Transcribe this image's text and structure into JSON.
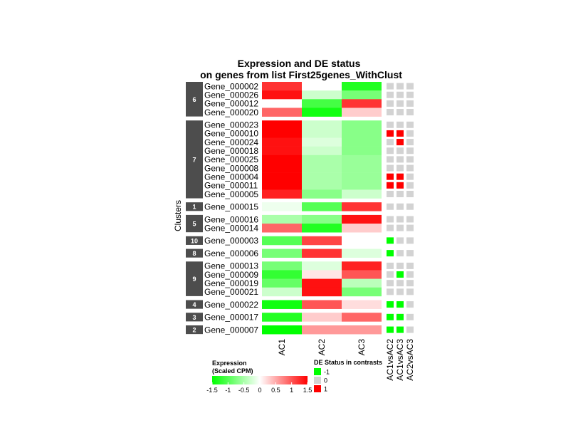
{
  "chart_data": {
    "type": "heatmap",
    "title": "Expression and DE status",
    "subtitle": "on genes from list First25genes_WithClust",
    "y_axis_label": "Clusters",
    "expression_columns": [
      "AC1",
      "AC2",
      "AC3"
    ],
    "contrast_columns": [
      "AC1vsAC2",
      "AC1vsAC3",
      "AC2vsAC3"
    ],
    "expression_range": [
      -1.5,
      1.5
    ],
    "expression_colors": {
      "low": "#00ff00",
      "mid": "#ffffff",
      "high": "#ff0000"
    },
    "de_colors": {
      "-1": "#00ff00",
      "0": "#d3d3d3",
      "1": "#ff0000"
    },
    "clusters": [
      {
        "label": "6",
        "genes": [
          {
            "name": "Gene_000002",
            "expr": [
              1.2,
              0.0,
              -1.3
            ],
            "de": [
              0,
              0,
              0
            ]
          },
          {
            "name": "Gene_000026",
            "expr": [
              1.4,
              -0.3,
              -0.8
            ],
            "de": [
              0,
              0,
              0
            ]
          },
          {
            "name": "Gene_000012",
            "expr": [
              0.0,
              -1.1,
              1.2
            ],
            "de": [
              0,
              0,
              0
            ]
          },
          {
            "name": "Gene_000020",
            "expr": [
              0.9,
              -1.4,
              0.3
            ],
            "de": [
              0,
              0,
              0
            ]
          }
        ]
      },
      {
        "label": "7",
        "genes": [
          {
            "name": "Gene_000023",
            "expr": [
              1.5,
              -0.3,
              -0.7
            ],
            "de": [
              0,
              0,
              0
            ]
          },
          {
            "name": "Gene_000010",
            "expr": [
              1.5,
              -0.3,
              -0.7
            ],
            "de": [
              1,
              1,
              0
            ]
          },
          {
            "name": "Gene_000024",
            "expr": [
              1.4,
              -0.2,
              -0.7
            ],
            "de": [
              0,
              1,
              0
            ]
          },
          {
            "name": "Gene_000018",
            "expr": [
              1.4,
              -0.3,
              -0.7
            ],
            "de": [
              0,
              0,
              0
            ]
          },
          {
            "name": "Gene_000025",
            "expr": [
              1.5,
              -0.5,
              -0.6
            ],
            "de": [
              0,
              0,
              0
            ]
          },
          {
            "name": "Gene_000008",
            "expr": [
              1.5,
              -0.5,
              -0.6
            ],
            "de": [
              0,
              0,
              0
            ]
          },
          {
            "name": "Gene_000004",
            "expr": [
              1.5,
              -0.5,
              -0.6
            ],
            "de": [
              1,
              1,
              0
            ]
          },
          {
            "name": "Gene_000011",
            "expr": [
              1.5,
              -0.5,
              -0.6
            ],
            "de": [
              1,
              1,
              0
            ]
          },
          {
            "name": "Gene_000005",
            "expr": [
              1.3,
              -0.7,
              -0.3
            ],
            "de": [
              0,
              0,
              0
            ]
          }
        ]
      },
      {
        "label": "1",
        "genes": [
          {
            "name": "Gene_000015",
            "expr": [
              -0.1,
              -1.0,
              1.2
            ],
            "de": [
              0,
              0,
              0
            ]
          }
        ]
      },
      {
        "label": "5",
        "genes": [
          {
            "name": "Gene_000016",
            "expr": [
              -0.5,
              -0.7,
              1.4
            ],
            "de": [
              0,
              0,
              0
            ]
          },
          {
            "name": "Gene_000014",
            "expr": [
              0.9,
              -1.3,
              0.3
            ],
            "de": [
              0,
              0,
              0
            ]
          }
        ]
      },
      {
        "label": "10",
        "genes": [
          {
            "name": "Gene_000003",
            "expr": [
              -1.0,
              1.1,
              0.0
            ],
            "de": [
              -1,
              0,
              0
            ]
          }
        ]
      },
      {
        "label": "8",
        "genes": [
          {
            "name": "Gene_000006",
            "expr": [
              -0.8,
              1.2,
              -0.2
            ],
            "de": [
              -1,
              0,
              0
            ]
          }
        ]
      },
      {
        "label": "9",
        "genes": [
          {
            "name": "Gene_000013",
            "expr": [
              -0.8,
              -0.2,
              1.3
            ],
            "de": [
              0,
              0,
              0
            ]
          },
          {
            "name": "Gene_000009",
            "expr": [
              -1.2,
              0.15,
              1.0
            ],
            "de": [
              0,
              -1,
              0
            ]
          },
          {
            "name": "Gene_000019",
            "expr": [
              -0.9,
              1.4,
              -0.4
            ],
            "de": [
              0,
              0,
              0
            ]
          },
          {
            "name": "Gene_000021",
            "expr": [
              -0.3,
              1.4,
              -0.8
            ],
            "de": [
              0,
              0,
              0
            ]
          }
        ]
      },
      {
        "label": "4",
        "genes": [
          {
            "name": "Gene_000022",
            "expr": [
              -1.4,
              1.0,
              0.2
            ],
            "de": [
              -1,
              -1,
              0
            ]
          }
        ]
      },
      {
        "label": "3",
        "genes": [
          {
            "name": "Gene_000017",
            "expr": [
              -1.3,
              0.3,
              0.9
            ],
            "de": [
              -1,
              -1,
              0
            ]
          }
        ]
      },
      {
        "label": "2",
        "genes": [
          {
            "name": "Gene_000007",
            "expr": [
              -1.5,
              0.6,
              0.6
            ],
            "de": [
              -1,
              -1,
              0
            ]
          }
        ]
      }
    ],
    "legend": {
      "expression_title_line1": "Expression",
      "expression_title_line2": "(Scaled CPM)",
      "expression_ticks": [
        "-1.5",
        "-1",
        "-0.5",
        "0",
        "0.5",
        "1",
        "1.5"
      ],
      "de_title": "DE Status in contrasts",
      "de_labels": [
        "-1",
        "0",
        "1"
      ]
    }
  }
}
